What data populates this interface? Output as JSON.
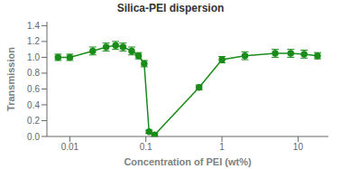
{
  "chart_data": {
    "type": "line",
    "title": "Silica-PEI dispersion",
    "xlabel": "Concentration of PEI (wt%)",
    "ylabel": "Transmission",
    "log": "x",
    "grid": false,
    "marker": "circle",
    "color": "#1a8c1a",
    "xlim": [
      0.005,
      25.0
    ],
    "xticks": [
      0.01,
      0.1,
      1,
      10
    ],
    "ylim": [
      0.0,
      1.45
    ],
    "yticks": [
      {
        "value": 0.0,
        "label": "0.0"
      },
      0.2,
      0.4,
      0.6,
      0.8,
      {
        "value": 1.0,
        "label": "1.0"
      },
      1.2,
      1.4
    ],
    "x": [
      0.007,
      0.01,
      0.02,
      0.03,
      0.04,
      0.05,
      0.065,
      0.08,
      0.095,
      0.11,
      0.13,
      0.5,
      1.0,
      2.0,
      5.0,
      8.0,
      12.0,
      18.0
    ],
    "values": [
      1.0,
      1.0,
      1.08,
      1.13,
      1.15,
      1.13,
      1.08,
      1.02,
      0.92,
      0.06,
      0.02,
      0.62,
      0.97,
      1.02,
      1.05,
      1.05,
      1.04,
      1.02
    ],
    "y_err": [
      0.04,
      0.04,
      0.05,
      0.05,
      0.05,
      0.05,
      0.05,
      0.04,
      0.04,
      0.02,
      0.02,
      0.03,
      0.04,
      0.05,
      0.05,
      0.05,
      0.05,
      0.04
    ]
  }
}
